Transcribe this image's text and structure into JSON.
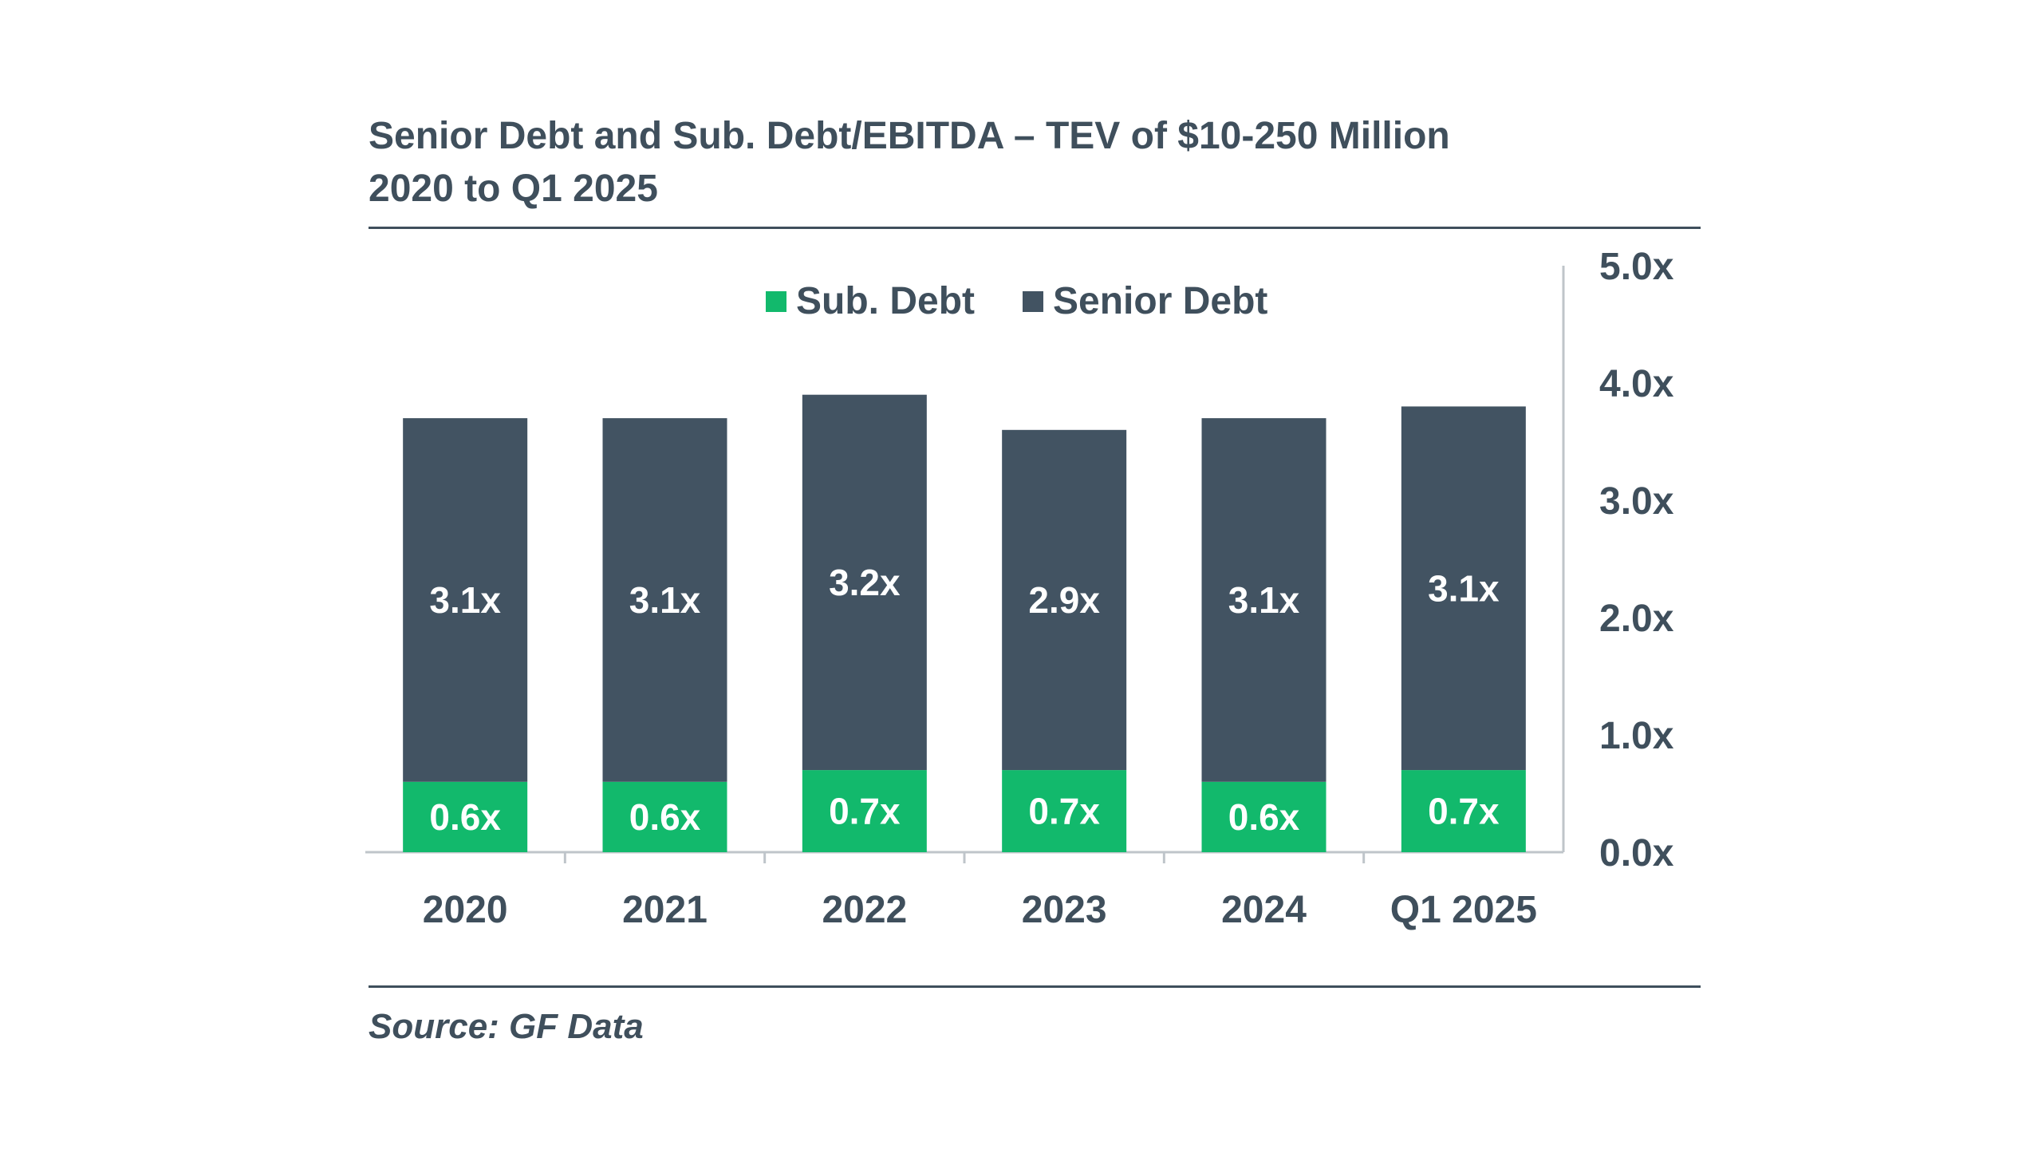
{
  "title": {
    "line1": "Senior Debt and Sub. Debt/EBITDA – TEV of $10-250 Million",
    "line2": "2020 to Q1 2025"
  },
  "source": "Source: GF Data",
  "colors": {
    "sub_debt": "#12b96c",
    "senior_debt": "#425362",
    "text": "#3f4f5c"
  },
  "chart_data": {
    "type": "bar",
    "stacked": true,
    "categories": [
      "2020",
      "2021",
      "2022",
      "2023",
      "2024",
      "Q1 2025"
    ],
    "series": [
      {
        "name": "Sub. Debt",
        "values": [
          0.6,
          0.6,
          0.7,
          0.7,
          0.6,
          0.7
        ],
        "labels": [
          "0.6x",
          "0.6x",
          "0.7x",
          "0.7x",
          "0.6x",
          "0.7x"
        ]
      },
      {
        "name": "Senior Debt",
        "values": [
          3.1,
          3.1,
          3.2,
          2.9,
          3.1,
          3.1
        ],
        "labels": [
          "3.1x",
          "3.1x",
          "3.2x",
          "2.9x",
          "3.1x",
          "3.1x"
        ]
      }
    ],
    "ylim": [
      0,
      5
    ],
    "yticks": [
      "0.0x",
      "1.0x",
      "2.0x",
      "3.0x",
      "4.0x",
      "5.0x"
    ],
    "yaxis_side": "right",
    "legend_position": "top-center",
    "grid": false
  }
}
